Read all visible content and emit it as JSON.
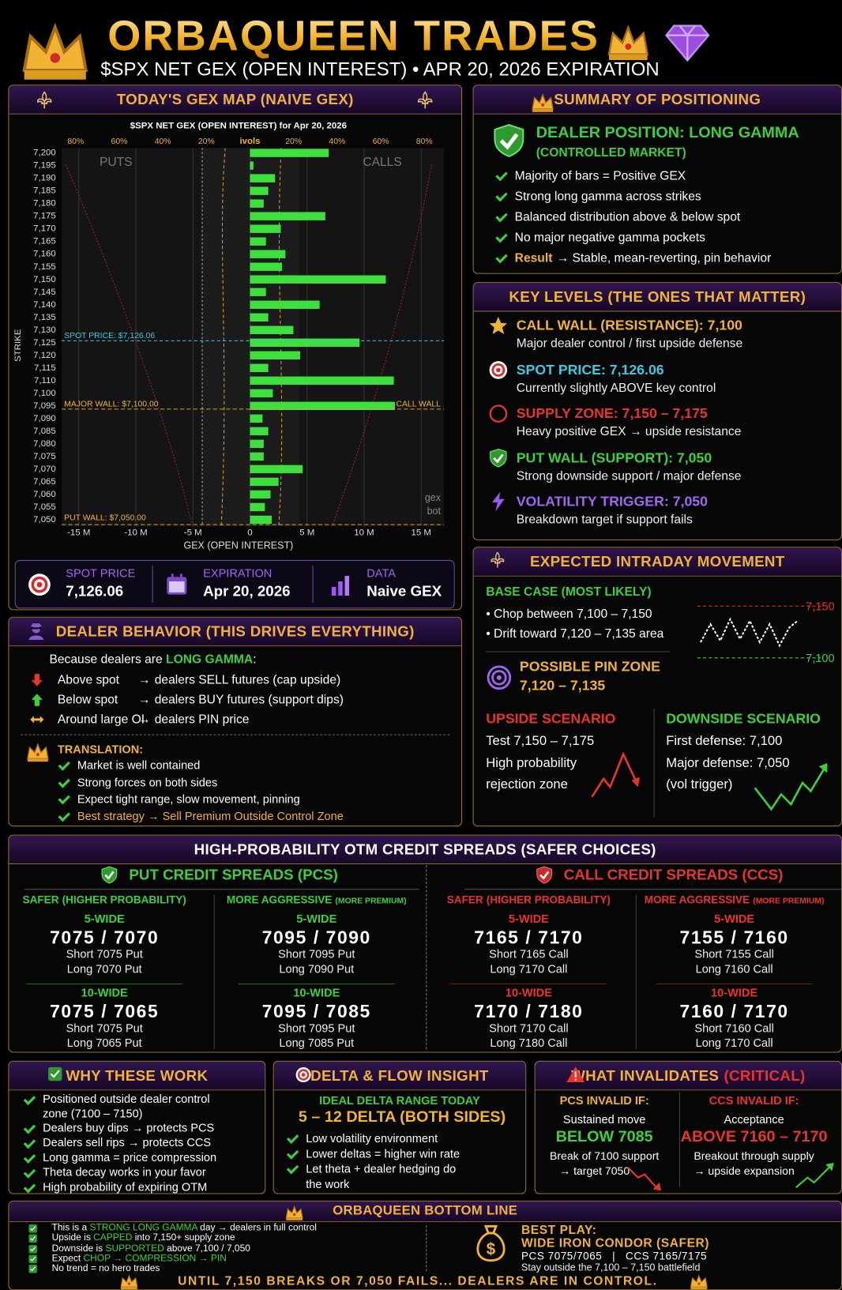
{
  "header": {
    "title": "ORBAQUEEN TRADES",
    "subtitle": "$SPX NET GEX (OPEN INTEREST) • APR 20, 2026 EXPIRATION"
  },
  "gex_map": {
    "title": "TODAY'S GEX MAP (NAIVE GEX)",
    "stats": [
      {
        "label": "SPOT PRICE",
        "value": "7,126.06"
      },
      {
        "label": "EXPIRATION",
        "value": "Apr 20, 2026"
      },
      {
        "label": "DATA",
        "value": "Naive GEX"
      }
    ]
  },
  "chart_data": {
    "type": "barh",
    "title": "$SPX NET GEX (OPEN INTEREST) for Apr 20, 2026",
    "x_label": "GEX (OPEN INTEREST)",
    "y_label": "STRIKE",
    "categories": [
      "7,200",
      "7,195",
      "7,190",
      "7,185",
      "7,180",
      "7,175",
      "7,170",
      "7,165",
      "7,160",
      "7,155",
      "7,150",
      "7,145",
      "7,140",
      "7,135",
      "7,130",
      "7,125",
      "7,120",
      "7,115",
      "7,110",
      "7,100",
      "7,095",
      "7,090",
      "7,085",
      "7,080",
      "7,075",
      "7,070",
      "7,065",
      "7,060",
      "7,055",
      "7,050"
    ],
    "values": [
      6.9,
      0.3,
      2.2,
      1.6,
      1.2,
      6.6,
      2.7,
      1.4,
      3.1,
      2.8,
      11.9,
      1.4,
      6.1,
      1.6,
      3.8,
      9.6,
      4.4,
      1.6,
      12.6,
      2.0,
      12.7,
      1.1,
      1.6,
      1.2,
      1.2,
      4.6,
      2.5,
      1.8,
      1.3,
      1.9
    ],
    "color": "#3ee03e",
    "xlim": [
      -16.5,
      17
    ],
    "xticks": [
      {
        "value": -15,
        "label": "-15 M"
      },
      {
        "value": -10,
        "label": "-10 M"
      },
      {
        "value": -5,
        "label": "-5 M"
      },
      0,
      {
        "value": 5,
        "label": "5 M"
      },
      {
        "value": 10,
        "label": "10 M"
      },
      {
        "value": 15,
        "label": "15 M"
      }
    ],
    "grid": true,
    "top_axis": {
      "label": "ivols",
      "ticks": [
        "80%",
        "60%",
        "40%",
        "20%",
        "20%",
        "40%",
        "60%",
        "80%"
      ]
    },
    "side_labels": [
      "PUTS",
      "CALLS"
    ],
    "annotations": {
      "spot": "SPOT PRICE: $7,126.06",
      "major_wall": "MAJOR WALL: $7,100.00",
      "call_wall": "CALL WALL",
      "put_wall": "PUT WALL: $7,050.00"
    },
    "watermark": [
      "gex",
      "bot"
    ]
  },
  "summary": {
    "title": "SUMMARY OF POSITIONING",
    "position": "DEALER POSITION: LONG GAMMA",
    "position_note": "(CONTROLLED MARKET)",
    "items": [
      "Majority of bars = Positive GEX",
      "Strong long gamma across strikes",
      "Balanced distribution above & below spot",
      "No major negative gamma pockets"
    ],
    "result": [
      "Result",
      "→ Stable, mean-reverting, pin behavior"
    ]
  },
  "key_levels": {
    "title": "KEY LEVELS (THE ONES THAT MATTER)",
    "items": [
      {
        "heading": "CALL WALL (RESISTANCE): 7,100",
        "note": "Major dealer control / first upside defense"
      },
      {
        "heading": "SPOT PRICE: 7,126.06",
        "note": "Currently slightly ABOVE key control"
      },
      {
        "heading": "SUPPLY ZONE: 7,150 – 7,175",
        "note": "Heavy positive GEX → upside resistance"
      },
      {
        "heading": "PUT WALL (SUPPORT): 7,050",
        "note": "Strong downside support / major defense"
      },
      {
        "heading": "VOLATILITY TRIGGER: 7,050",
        "note": "Breakdown target if support fails"
      }
    ]
  },
  "intraday": {
    "title": "EXPECTED INTRADAY MOVEMENT",
    "base_title": "BASE CASE (MOST LIKELY)",
    "base_items": [
      "• Chop between 7,100 – 7,150",
      "• Drift toward 7,120 – 7,135 area"
    ],
    "range_labels": [
      "7,150",
      "7,100"
    ],
    "pin_title": "POSSIBLE PIN ZONE",
    "pin_range": "7,120 – 7,135",
    "upside": {
      "title": "UPSIDE SCENARIO",
      "lines": [
        "Test 7,150 – 7,175",
        "High probability",
        "rejection zone"
      ]
    },
    "downside": {
      "title": "DOWNSIDE SCENARIO",
      "lines": [
        "First defense: 7,100",
        "Major defense: 7,050",
        "(vol trigger)"
      ]
    }
  },
  "dealer_behavior": {
    "title": "DEALER BEHAVIOR (THIS DRIVES EVERYTHING)",
    "intro": [
      "Because dealers are ",
      "LONG GAMMA",
      ":"
    ],
    "arrow": "→",
    "rows": [
      {
        "left": "Above spot",
        "right": "dealers SELL futures (cap upside)"
      },
      {
        "left": "Below spot",
        "right": "dealers BUY futures (support dips)"
      },
      {
        "left": "Around large OI",
        "right": "dealers PIN price"
      }
    ],
    "translation_title": "TRANSLATION:",
    "translation": [
      "Market is well contained",
      "Strong forces on both sides",
      "Expect tight range, slow movement, pinning"
    ],
    "best_strategy": "Best strategy → Sell Premium Outside Control Zone"
  },
  "spreads": {
    "title": "HIGH-PROBABILITY OTM CREDIT SPREADS (SAFER CHOICES)",
    "groups": [
      {
        "title": "PUT CREDIT SPREADS (PCS)",
        "columns": [
          {
            "heading": "SAFER",
            "note": "(HIGHER PROBABILITY)",
            "blocks": [
              {
                "width": "5-WIDE",
                "strikes": "7075 / 7070",
                "short": "Short 7075 Put",
                "long": "Long 7070 Put"
              },
              {
                "width": "10-WIDE",
                "strikes": "7075 / 7065",
                "short": "Short 7075 Put",
                "long": "Long 7065 Put"
              }
            ]
          },
          {
            "heading": "MORE AGGRESSIVE",
            "note": "(MORE PREMIUM)",
            "blocks": [
              {
                "width": "5-WIDE",
                "strikes": "7095 / 7090",
                "short": "Short 7095 Put",
                "long": "Long 7090 Put"
              },
              {
                "width": "10-WIDE",
                "strikes": "7095 / 7085",
                "short": "Short 7095 Put",
                "long": "Long 7085 Put"
              }
            ]
          }
        ]
      },
      {
        "title": "CALL CREDIT SPREADS (CCS)",
        "columns": [
          {
            "heading": "SAFER",
            "note": "(HIGHER PROBABILITY)",
            "blocks": [
              {
                "width": "5-WIDE",
                "strikes": "7165 / 7170",
                "short": "Short 7165 Call",
                "long": "Long 7170 Call"
              },
              {
                "width": "10-WIDE",
                "strikes": "7170 / 7180",
                "short": "Short 7170 Call",
                "long": "Long 7180 Call"
              }
            ]
          },
          {
            "heading": "MORE AGGRESSIVE",
            "note": "(MORE PREMIUM)",
            "blocks": [
              {
                "width": "5-WIDE",
                "strikes": "7155 / 7160",
                "short": "Short 7155 Call",
                "long": "Long 7160 Call"
              },
              {
                "width": "10-WIDE",
                "strikes": "7160 / 7170",
                "short": "Short 7160 Call",
                "long": "Long 7170 Call"
              }
            ]
          }
        ]
      }
    ]
  },
  "why": {
    "title": "WHY THESE WORK",
    "items": [
      "Positioned outside dealer control zone (7100 – 7150)",
      "Dealers buy dips → protects PCS",
      "Dealers sell rips → protects CCS",
      "Long gamma = price compression",
      "Theta decay works in your favor",
      "High probability of expiring OTM"
    ]
  },
  "delta": {
    "title": "DELTA & FLOW INSIGHT",
    "subtitle": "IDEAL DELTA RANGE TODAY",
    "range": "5 – 12 DELTA (BOTH SIDES)",
    "items": [
      "Low volatility environment",
      "Lower deltas = higher win rate",
      "Let theta + dealer hedging do the work"
    ]
  },
  "invalid": {
    "title": "WHAT INVALIDATES",
    "title_em": "(CRITICAL)",
    "columns": [
      {
        "title": "PCS INVALID IF:",
        "line": "Sustained move",
        "big": "BELOW 7085",
        "notes": [
          "Break of 7100 support",
          "→ target 7050"
        ]
      },
      {
        "title": "CCS INVALID IF:",
        "line": "Acceptance",
        "big": "ABOVE 7160 – 7170",
        "notes": [
          "Breakout through supply",
          "→ upside expansion"
        ]
      }
    ]
  },
  "bottom_line": {
    "title": "ORBAQUEEN BOTTOM LINE",
    "items": [
      [
        "This is a ",
        "STRONG LONG GAMMA",
        " day → dealers in full control"
      ],
      [
        "Upside is ",
        "CAPPED",
        " into 7,150+ supply zone"
      ],
      [
        "Downside is ",
        "SUPPORTED",
        " above 7,100 / 7,050"
      ],
      [
        "Expect ",
        "CHOP → COMPRESSION → PIN"
      ],
      [
        "No trend = no hero trades"
      ]
    ],
    "icon": "$",
    "best_play": {
      "title": "BEST PLAY:",
      "name": "WIDE IRON CONDOR (SAFER)",
      "legs": "PCS 7075/7065   |   CCS 7165/7175",
      "note": "Stay outside the 7,100 – 7,150 battlefield"
    },
    "footer": "UNTIL 7,150 BREAKS OR 7,050 FAILS... DEALERS ARE IN CONTROL."
  }
}
